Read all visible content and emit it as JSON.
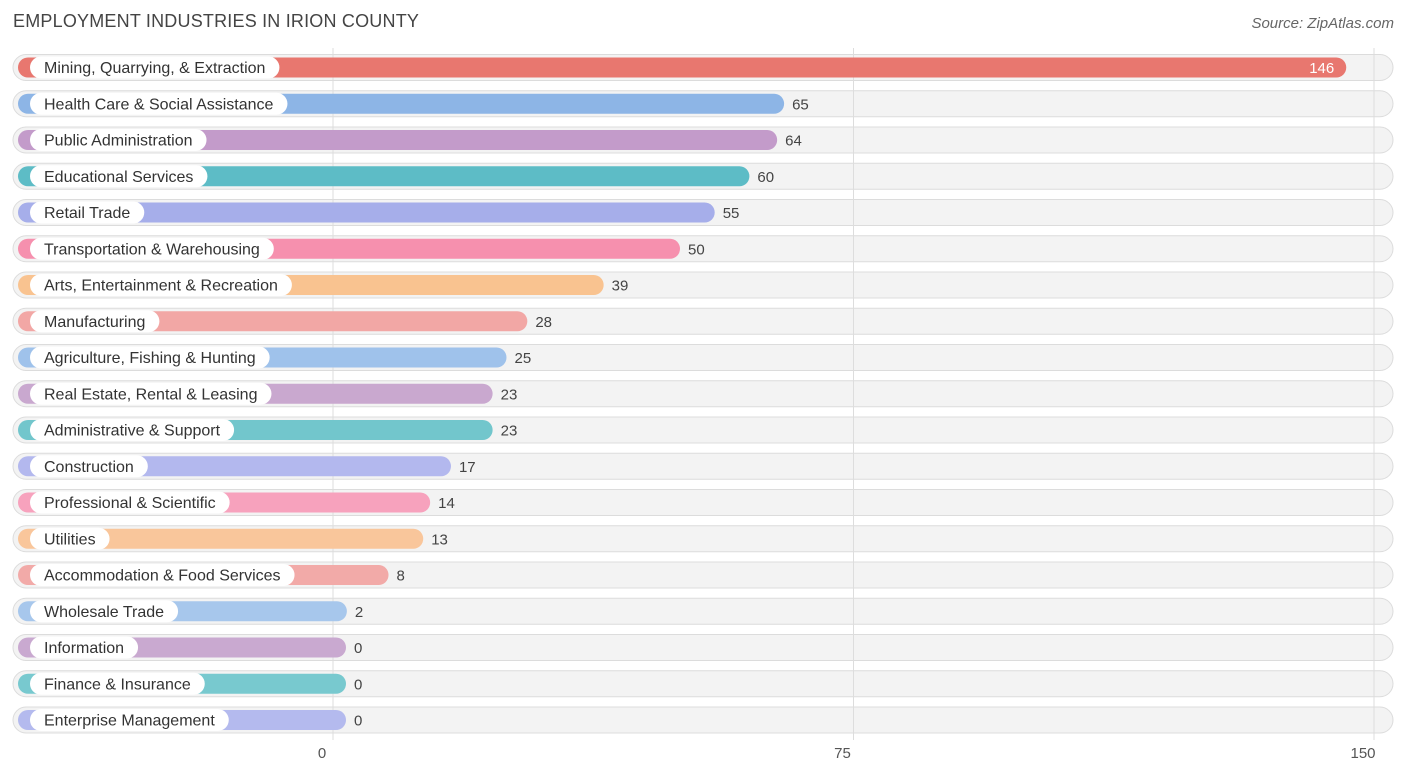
{
  "header": {
    "title": "EMPLOYMENT INDUSTRIES IN IRION COUNTY",
    "source": "Source: ZipAtlas.com"
  },
  "chart_data": {
    "type": "bar",
    "orientation": "horizontal",
    "title": "EMPLOYMENT INDUSTRIES IN IRION COUNTY",
    "xlabel": "",
    "ylabel": "",
    "xlim": [
      0,
      150
    ],
    "xticks": [
      0,
      75,
      150
    ],
    "grid": true,
    "categories": [
      "Mining, Quarrying, & Extraction",
      "Health Care & Social Assistance",
      "Public Administration",
      "Educational Services",
      "Retail Trade",
      "Transportation & Warehousing",
      "Arts, Entertainment & Recreation",
      "Manufacturing",
      "Agriculture, Fishing & Hunting",
      "Real Estate, Rental & Leasing",
      "Administrative & Support",
      "Construction",
      "Professional & Scientific",
      "Utilities",
      "Accommodation & Food Services",
      "Wholesale Trade",
      "Information",
      "Finance & Insurance",
      "Enterprise Management"
    ],
    "values": [
      146,
      65,
      64,
      60,
      55,
      50,
      39,
      28,
      25,
      23,
      23,
      17,
      14,
      13,
      8,
      2,
      0,
      0,
      0
    ],
    "value_labels": [
      "146",
      "65",
      "64",
      "60",
      "55",
      "50",
      "39",
      "28",
      "25",
      "23",
      "23",
      "17",
      "14",
      "13",
      "8",
      "2",
      "0",
      "0",
      "0"
    ],
    "colors": [
      "#e8776f",
      "#8db5e6",
      "#c39bca",
      "#5dbcc6",
      "#a6aeea",
      "#f690ae",
      "#f9c390",
      "#f2a7a5",
      "#9fc2eb",
      "#c9a8cf",
      "#72c6cc",
      "#b3b8ee",
      "#f7a2bd",
      "#f9c69b",
      "#f2aaa8",
      "#a7c7ec",
      "#c9a9d0",
      "#78c9cf",
      "#b4baee"
    ]
  }
}
